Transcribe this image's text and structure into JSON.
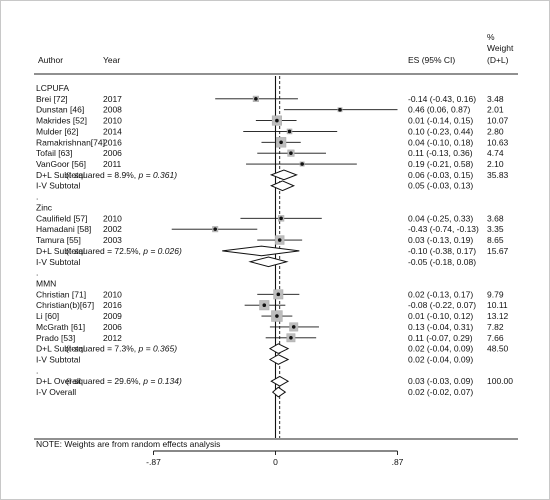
{
  "chart_data": {
    "type": "forest",
    "headers": {
      "author": "Author",
      "year": "Year",
      "es": "ES (95% CI)",
      "weight_line1": "%",
      "weight_line2": "Weight",
      "weight_line3": "(D+L)"
    },
    "x_ticks": [
      {
        "value": -0.87,
        "label": "-.87"
      },
      {
        "value": 0,
        "label": "0"
      },
      {
        "value": 0.87,
        "label": ".87"
      }
    ],
    "xlim": [
      -0.87,
      0.87
    ],
    "overall_reference": 0.03,
    "note": "NOTE: Weights are from random effects analysis",
    "rows": [
      {
        "kind": "group",
        "label": "LCPUFA"
      },
      {
        "kind": "study",
        "author": "Brei [72]",
        "year": "2017",
        "es": -0.14,
        "lo": -0.43,
        "hi": 0.16,
        "es_text": "-0.14 (-0.43, 0.16)",
        "weight": "3.48"
      },
      {
        "kind": "study",
        "author": "Dunstan [46]",
        "year": "2008",
        "es": 0.46,
        "lo": 0.06,
        "hi": 0.87,
        "es_text": "0.46 (0.06, 0.87)",
        "weight": "2.01"
      },
      {
        "kind": "study",
        "author": "Makrides [52]",
        "year": "2010",
        "es": 0.01,
        "lo": -0.14,
        "hi": 0.15,
        "es_text": "0.01 (-0.14, 0.15)",
        "weight": "10.07"
      },
      {
        "kind": "study",
        "author": "Mulder [62]",
        "year": "2014",
        "es": 0.1,
        "lo": -0.23,
        "hi": 0.44,
        "es_text": "0.10 (-0.23, 0.44)",
        "weight": "2.80"
      },
      {
        "kind": "study",
        "author": "Ramakrishnan[74]",
        "year": "2016",
        "es": 0.04,
        "lo": -0.1,
        "hi": 0.18,
        "es_text": "0.04 (-0.10, 0.18)",
        "weight": "10.63"
      },
      {
        "kind": "study",
        "author": "Tofail [63]",
        "year": "2006",
        "es": 0.11,
        "lo": -0.13,
        "hi": 0.36,
        "es_text": "0.11 (-0.13, 0.36)",
        "weight": "4.74"
      },
      {
        "kind": "study",
        "author": "VanGoor [56]",
        "year": "2011",
        "es": 0.19,
        "lo": -0.21,
        "hi": 0.58,
        "es_text": "0.19 (-0.21, 0.58)",
        "weight": "2.10"
      },
      {
        "kind": "subtotal",
        "label": "D+L Subtotal",
        "stat": "(I-squared = 8.9%, ",
        "pval": "p = 0.361)",
        "es": 0.06,
        "lo": -0.03,
        "hi": 0.15,
        "es_text": "0.06 (-0.03, 0.15)",
        "weight": "35.83"
      },
      {
        "kind": "subtotal",
        "label": "I-V Subtotal",
        "stat": "",
        "pval": "",
        "es": 0.05,
        "lo": -0.03,
        "hi": 0.13,
        "es_text": "0.05 (-0.03, 0.13)",
        "weight": ""
      },
      {
        "kind": "dot",
        "label": "."
      },
      {
        "kind": "group",
        "label": "Zinc"
      },
      {
        "kind": "study",
        "author": "Caulifield [57]",
        "year": "2010",
        "es": 0.04,
        "lo": -0.25,
        "hi": 0.33,
        "es_text": "0.04 (-0.25, 0.33)",
        "weight": "3.68"
      },
      {
        "kind": "study",
        "author": "Hamadani [58]",
        "year": "2002",
        "es": -0.43,
        "lo": -0.74,
        "hi": -0.13,
        "es_text": "-0.43 (-0.74, -0.13)",
        "weight": "3.35"
      },
      {
        "kind": "study",
        "author": "Tamura [55]",
        "year": "2003",
        "es": 0.03,
        "lo": -0.13,
        "hi": 0.19,
        "es_text": "0.03 (-0.13, 0.19)",
        "weight": "8.65"
      },
      {
        "kind": "subtotal",
        "label": "D+L Subtotal",
        "stat": "(I-squared = 72.5%, ",
        "pval": "p = 0.026)",
        "es": -0.1,
        "lo": -0.38,
        "hi": 0.17,
        "es_text": "-0.10 (-0.38, 0.17)",
        "weight": "15.67"
      },
      {
        "kind": "subtotal",
        "label": "I-V Subtotal",
        "stat": "",
        "pval": "",
        "es": -0.05,
        "lo": -0.18,
        "hi": 0.08,
        "es_text": "-0.05 (-0.18, 0.08)",
        "weight": ""
      },
      {
        "kind": "dot",
        "label": "."
      },
      {
        "kind": "group",
        "label": "MMN"
      },
      {
        "kind": "study",
        "author": "Christian [71]",
        "year": "2010",
        "es": 0.02,
        "lo": -0.13,
        "hi": 0.17,
        "es_text": "0.02 (-0.13, 0.17)",
        "weight": "9.79"
      },
      {
        "kind": "study",
        "author": "Christian(b)[67]",
        "year": "2016",
        "es": -0.08,
        "lo": -0.22,
        "hi": 0.07,
        "es_text": "-0.08 (-0.22, 0.07)",
        "weight": "10.11"
      },
      {
        "kind": "study",
        "author": "Li [60]",
        "year": "2009",
        "es": 0.01,
        "lo": -0.1,
        "hi": 0.12,
        "es_text": "0.01 (-0.10, 0.12)",
        "weight": "13.12"
      },
      {
        "kind": "study",
        "author": "McGrath [61]",
        "year": "2006",
        "es": 0.13,
        "lo": -0.04,
        "hi": 0.31,
        "es_text": "0.13 (-0.04, 0.31)",
        "weight": "7.82"
      },
      {
        "kind": "study",
        "author": "Prado [53]",
        "year": "2012",
        "es": 0.11,
        "lo": -0.07,
        "hi": 0.29,
        "es_text": "0.11 (-0.07, 0.29)",
        "weight": "7.66"
      },
      {
        "kind": "subtotal",
        "label": "D+L Subtotal",
        "stat": "(I-squared = 7.3%, ",
        "pval": "p = 0.365)",
        "es": 0.02,
        "lo": -0.04,
        "hi": 0.09,
        "es_text": "0.02 (-0.04, 0.09)",
        "weight": "48.50"
      },
      {
        "kind": "subtotal",
        "label": "I-V Subtotal",
        "stat": "",
        "pval": "",
        "es": 0.02,
        "lo": -0.04,
        "hi": 0.09,
        "es_text": "0.02 (-0.04, 0.09)",
        "weight": ""
      },
      {
        "kind": "dot",
        "label": "."
      },
      {
        "kind": "overall",
        "label": "D+L Overall",
        "stat": "(I-squared = 29.6%, ",
        "pval": "p = 0.134)",
        "es": 0.03,
        "lo": -0.03,
        "hi": 0.09,
        "es_text": "0.03 (-0.03, 0.09)",
        "weight": "100.00"
      },
      {
        "kind": "overall",
        "label": "I-V Overall",
        "stat": "",
        "pval": "",
        "es": 0.02,
        "lo": -0.02,
        "hi": 0.07,
        "es_text": "0.02 (-0.02, 0.07)",
        "weight": ""
      }
    ]
  }
}
